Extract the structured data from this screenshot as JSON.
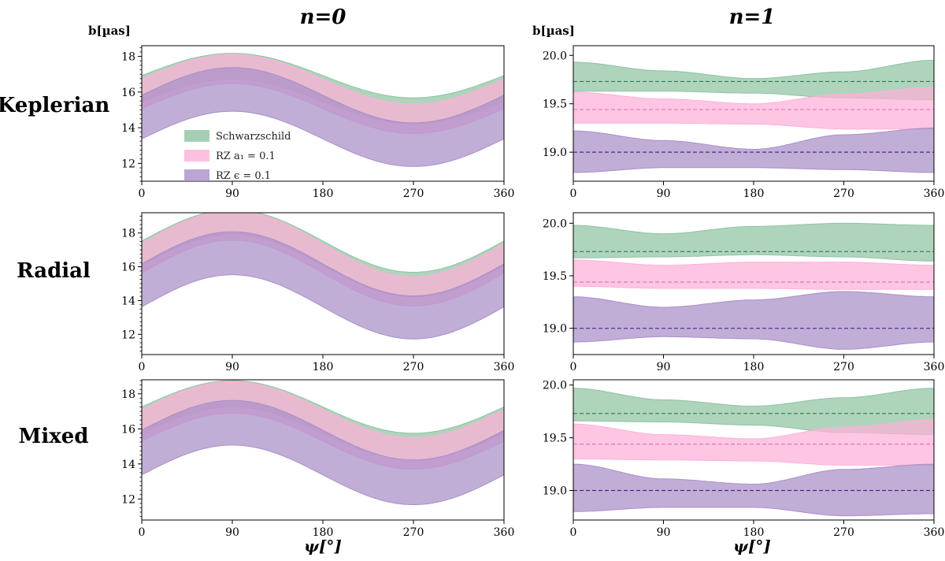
{
  "figure": {
    "col_titles": [
      "n=0",
      "n=1"
    ],
    "row_labels": [
      "Keplerian",
      "Radial",
      "Mixed"
    ],
    "ylabel": "b[µas]",
    "xlabel": "ψ[°]"
  },
  "colors": {
    "schwarzschild": "#8fc3a2",
    "rz_a1": "#ffb0d8",
    "rz_eps": "#a98fc8",
    "schwarzschild_line": "#2e7d4f",
    "rz_a1_line": "#e077b4",
    "rz_eps_line": "#4b2a8a"
  },
  "chart_data": [
    {
      "type": "area",
      "panel": "Keplerian n=0",
      "x": [
        0,
        90,
        180,
        270,
        360
      ],
      "xlim": [
        0,
        360
      ],
      "ylim": [
        11,
        18.6
      ],
      "xticks": [
        0,
        90,
        180,
        270,
        360
      ],
      "yticks": [
        12,
        14,
        16,
        18
      ],
      "legend": [
        "Schwarzschild",
        "RZ a₁ = 0.1",
        "RZ ϵ = 0.1"
      ],
      "series": [
        {
          "name": "Schwarzschild",
          "color_key": "schwarzschild",
          "center": 16.2,
          "amp": 1.25,
          "width": 1.45
        },
        {
          "name": "RZ a₁ = 0.1",
          "color_key": "rz_a1",
          "center": 15.9,
          "amp": 1.4,
          "width": 1.65
        },
        {
          "name": "RZ ϵ = 0.1",
          "color_key": "rz_eps",
          "center": 14.6,
          "amp": 1.55,
          "width": 2.45
        }
      ]
    },
    {
      "type": "area",
      "panel": "Keplerian n=1",
      "x": [
        0,
        90,
        180,
        270,
        360
      ],
      "xlim": [
        0,
        360
      ],
      "ylim": [
        18.7,
        20.1
      ],
      "xticks": [
        0,
        90,
        180,
        270,
        360
      ],
      "yticks": [
        19.0,
        19.5,
        20.0
      ],
      "series": [
        {
          "name": "Schwarzschild",
          "color_key": "schwarzschild",
          "ref": 19.73,
          "upper": [
            19.93,
            19.84,
            19.76,
            19.83,
            19.95
          ],
          "lower": [
            19.63,
            19.63,
            19.61,
            19.56,
            19.54
          ]
        },
        {
          "name": "RZ a₁ = 0.1",
          "color_key": "rz_a1",
          "ref": 19.44,
          "upper": [
            19.62,
            19.55,
            19.5,
            19.6,
            19.67
          ],
          "lower": [
            19.3,
            19.3,
            19.29,
            19.24,
            19.24
          ]
        },
        {
          "name": "RZ ϵ = 0.1",
          "color_key": "rz_eps",
          "ref": 19.0,
          "upper": [
            19.22,
            19.12,
            19.03,
            19.18,
            19.25
          ],
          "lower": [
            18.79,
            18.84,
            18.84,
            18.82,
            18.79
          ]
        }
      ]
    },
    {
      "type": "area",
      "panel": "Radial n=0",
      "x": [
        0,
        90,
        180,
        270,
        360
      ],
      "xlim": [
        0,
        360
      ],
      "ylim": [
        10.8,
        19.2
      ],
      "xticks": [
        0,
        90,
        180,
        270,
        360
      ],
      "yticks": [
        12,
        14,
        16,
        18
      ],
      "series": [
        {
          "name": "Schwarzschild",
          "color_key": "schwarzschild",
          "center": 16.8,
          "amp": 1.85,
          "width": 1.45
        },
        {
          "name": "RZ a₁ = 0.1",
          "color_key": "rz_a1",
          "center": 16.5,
          "amp": 1.95,
          "width": 1.75
        },
        {
          "name": "RZ ϵ = 0.1",
          "color_key": "rz_eps",
          "center": 14.9,
          "amp": 1.9,
          "width": 2.55
        }
      ]
    },
    {
      "type": "area",
      "panel": "Radial n=1",
      "x": [
        0,
        90,
        180,
        270,
        360
      ],
      "xlim": [
        0,
        360
      ],
      "ylim": [
        18.75,
        20.1
      ],
      "xticks": [
        0,
        90,
        180,
        270,
        360
      ],
      "yticks": [
        19.0,
        19.5,
        20.0
      ],
      "series": [
        {
          "name": "Schwarzschild",
          "color_key": "schwarzschild",
          "ref": 19.73,
          "upper": [
            19.98,
            19.9,
            19.97,
            20.0,
            19.98
          ],
          "lower": [
            19.67,
            19.68,
            19.7,
            19.68,
            19.64
          ]
        },
        {
          "name": "RZ a₁ = 0.1",
          "color_key": "rz_a1",
          "ref": 19.44,
          "upper": [
            19.65,
            19.6,
            19.63,
            19.63,
            19.6
          ],
          "lower": [
            19.4,
            19.38,
            19.38,
            19.37,
            19.37
          ]
        },
        {
          "name": "RZ ϵ = 0.1",
          "color_key": "rz_eps",
          "ref": 19.0,
          "upper": [
            19.3,
            19.2,
            19.27,
            19.35,
            19.3
          ],
          "lower": [
            18.87,
            18.92,
            18.9,
            18.8,
            18.87
          ]
        }
      ]
    },
    {
      "type": "area",
      "panel": "Mixed n=0",
      "x": [
        0,
        90,
        180,
        270,
        360
      ],
      "xlim": [
        0,
        360
      ],
      "ylim": [
        10.8,
        18.8
      ],
      "xticks": [
        0,
        90,
        180,
        270,
        360
      ],
      "yticks": [
        12,
        14,
        16,
        18
      ],
      "series": [
        {
          "name": "Schwarzschild",
          "color_key": "schwarzschild",
          "center": 16.5,
          "amp": 1.5,
          "width": 1.5
        },
        {
          "name": "RZ a₁ = 0.1",
          "color_key": "rz_a1",
          "center": 16.2,
          "amp": 1.6,
          "width": 1.8
        },
        {
          "name": "RZ ϵ = 0.1",
          "color_key": "rz_eps",
          "center": 14.65,
          "amp": 1.7,
          "width": 2.55
        }
      ]
    },
    {
      "type": "area",
      "panel": "Mixed n=1",
      "x": [
        0,
        90,
        180,
        270,
        360
      ],
      "xlim": [
        0,
        360
      ],
      "ylim": [
        18.72,
        20.05
      ],
      "xticks": [
        0,
        90,
        180,
        270,
        360
      ],
      "yticks": [
        19.0,
        19.5,
        20.0
      ],
      "series": [
        {
          "name": "Schwarzschild",
          "color_key": "schwarzschild",
          "ref": 19.73,
          "upper": [
            19.97,
            19.86,
            19.8,
            19.88,
            19.97
          ],
          "lower": [
            19.66,
            19.65,
            19.62,
            19.55,
            19.53
          ]
        },
        {
          "name": "RZ a₁ = 0.1",
          "color_key": "rz_a1",
          "ref": 19.44,
          "upper": [
            19.63,
            19.53,
            19.49,
            19.6,
            19.67
          ],
          "lower": [
            19.3,
            19.29,
            19.28,
            19.24,
            19.24
          ]
        },
        {
          "name": "RZ ϵ = 0.1",
          "color_key": "rz_eps",
          "ref": 19.0,
          "upper": [
            19.25,
            19.11,
            19.06,
            19.2,
            19.25
          ],
          "lower": [
            18.8,
            18.84,
            18.84,
            18.76,
            18.78
          ]
        }
      ]
    }
  ]
}
